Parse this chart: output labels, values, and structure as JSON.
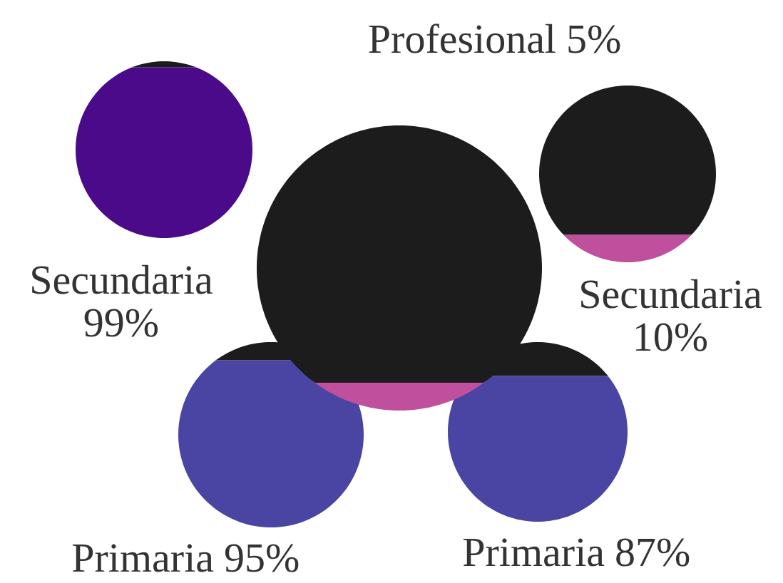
{
  "chart_data": {
    "type": "other",
    "categories": [
      "Profesional",
      "Secundaria",
      "Secundaria",
      "Primaria",
      "Primaria"
    ],
    "value_labels": [
      "5%",
      "99%",
      "10%",
      "95%",
      "87%"
    ],
    "values": [
      5,
      99,
      10,
      95,
      87
    ],
    "colors": [
      "#c0509e",
      "#4b0a8a",
      "#c0509e",
      "#4a45a3",
      "#4a45a3"
    ]
  }
}
